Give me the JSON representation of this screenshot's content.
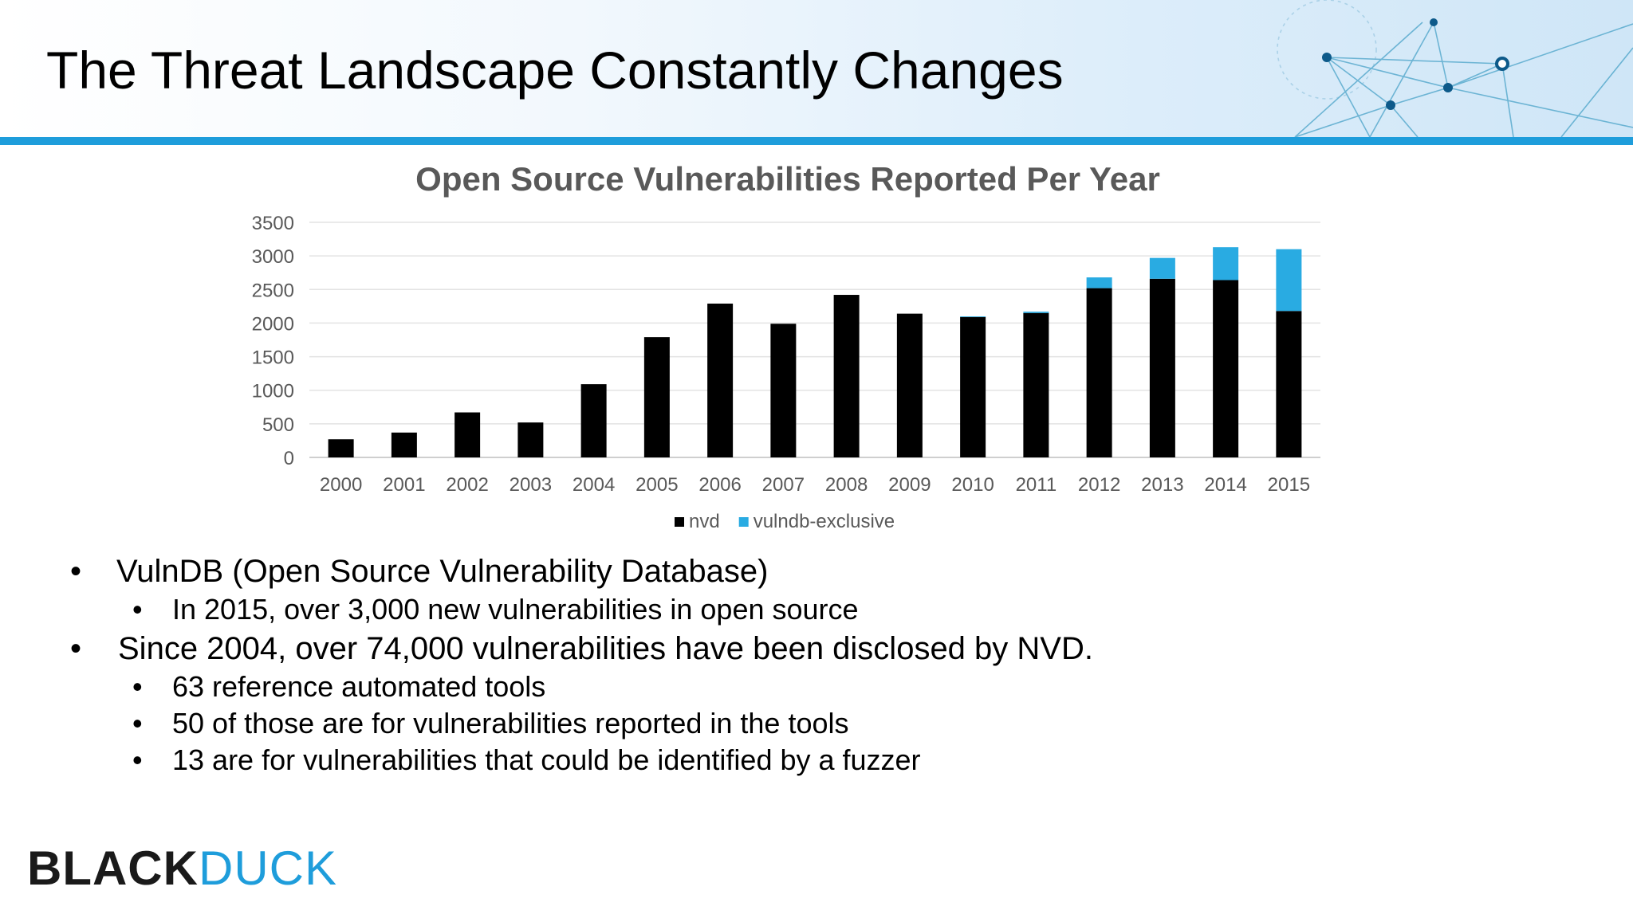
{
  "slide": {
    "title": "The Threat Landscape Constantly Changes"
  },
  "chart_data": {
    "type": "bar",
    "stacked": true,
    "title": "Open Source Vulnerabilities Reported Per Year",
    "xlabel": "",
    "ylabel": "",
    "ylim": [
      0,
      3500
    ],
    "yticks": [
      "0",
      "500",
      "1000",
      "1500",
      "2000",
      "2500",
      "3000",
      "3500"
    ],
    "grid": true,
    "legend_position": "bottom",
    "categories": [
      "2000",
      "2001",
      "2002",
      "2003",
      "2004",
      "2005",
      "2006",
      "2007",
      "2008",
      "2009",
      "2010",
      "2011",
      "2012",
      "2013",
      "2014",
      "2015"
    ],
    "series": [
      {
        "name": "nvd",
        "color": "#000000",
        "values": [
          270,
          370,
          670,
          520,
          1090,
          1790,
          2290,
          1990,
          2420,
          2140,
          2090,
          2150,
          2520,
          2660,
          2640,
          2180
        ]
      },
      {
        "name": "vulndb-exclusive",
        "color": "#29abe2",
        "values": [
          0,
          0,
          0,
          0,
          0,
          0,
          0,
          0,
          0,
          0,
          10,
          20,
          160,
          310,
          490,
          920
        ]
      }
    ]
  },
  "bullets": {
    "b1": "VulnDB (Open Source Vulnerability Database)",
    "b1_1": "In 2015, over 3,000 new vulnerabilities in open source",
    "b2": "Since 2004, over 74,000 vulnerabilities have been disclosed by NVD.",
    "b2_1": "63 reference automated tools",
    "b2_2": "50 of those are for vulnerabilities reported in the tools",
    "b2_3": "13 are for vulnerabilities that could be identified by a fuzzer",
    "bullet_glyph": "•"
  },
  "logo": {
    "part1": "BLACK",
    "part2": "DUCK"
  },
  "colors": {
    "accent": "#1e9ddb",
    "nvd": "#000000",
    "vulndb": "#29abe2"
  }
}
